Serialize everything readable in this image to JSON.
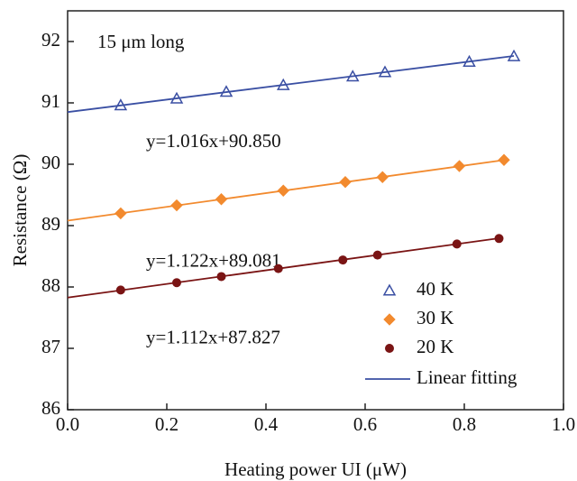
{
  "chart_data": {
    "type": "scatter",
    "xlabel": "Heating power UI (μW)",
    "ylabel": "Resistance (Ω)",
    "annotation": "15 μm long",
    "xlim": [
      0,
      1.0
    ],
    "ylim": [
      86,
      92.5
    ],
    "xticks": [
      {
        "value": 0,
        "label": "0.0"
      },
      0.2,
      0.4,
      0.6,
      0.8,
      {
        "value": 1,
        "label": "1.0"
      }
    ],
    "yticks": [
      86,
      87,
      88,
      89,
      90,
      91,
      92
    ],
    "legend": "bottom-right",
    "fit_legend": "Linear fitting",
    "fit_color": "#3a4fa3",
    "series": [
      {
        "name": "40 K",
        "color": "#3a4fa3",
        "marker": "triangle-open",
        "x": [
          0.107,
          0.22,
          0.32,
          0.435,
          0.575,
          0.64,
          0.81,
          0.9
        ],
        "values": [
          90.96,
          91.07,
          91.18,
          91.29,
          91.43,
          91.5,
          91.67,
          91.76
        ]
      },
      {
        "name": "30 K",
        "color": "#f28a2e",
        "marker": "diamond",
        "x": [
          0.107,
          0.22,
          0.31,
          0.435,
          0.56,
          0.635,
          0.79,
          0.88
        ],
        "values": [
          89.2,
          89.33,
          89.43,
          89.57,
          89.71,
          89.79,
          89.97,
          90.07
        ]
      },
      {
        "name": "20 K",
        "color": "#7a1414",
        "marker": "circle",
        "x": [
          0.107,
          0.22,
          0.31,
          0.425,
          0.555,
          0.625,
          0.785,
          0.87
        ],
        "values": [
          87.95,
          88.07,
          88.17,
          88.3,
          88.44,
          88.52,
          88.7,
          88.79
        ]
      }
    ],
    "fits": [
      {
        "slope": 1.016,
        "intercept": 90.85,
        "label": "y=1.016x+90.850"
      },
      {
        "slope": 1.122,
        "intercept": 89.081,
        "label": "y=1.122x+89.081"
      },
      {
        "slope": 1.112,
        "intercept": 87.827,
        "label": "y=1.112x+87.827"
      }
    ]
  }
}
